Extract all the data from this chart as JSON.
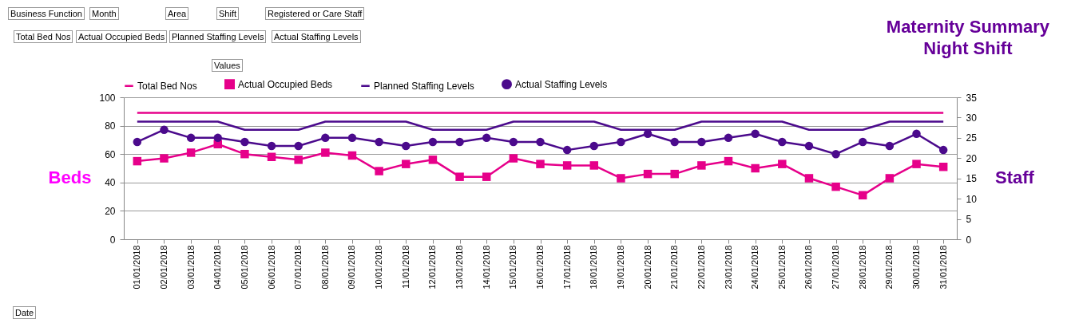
{
  "chart_data": {
    "type": "line",
    "title": "Maternity Summary",
    "subtitle": "Night Shift",
    "ylabel": "Beds",
    "y2label": "Staff",
    "categories": [
      "01/01/2018",
      "02/01/2018",
      "03/01/2018",
      "04/01/2018",
      "05/01/2018",
      "06/01/2018",
      "07/01/2018",
      "08/01/2018",
      "09/01/2018",
      "10/01/2018",
      "11/01/2018",
      "12/01/2018",
      "13/01/2018",
      "14/01/2018",
      "15/01/2018",
      "16/01/2018",
      "17/01/2018",
      "18/01/2018",
      "19/01/2018",
      "20/01/2018",
      "21/01/2018",
      "22/01/2018",
      "23/01/2018",
      "24/01/2018",
      "25/01/2018",
      "26/01/2018",
      "27/01/2018",
      "28/01/2018",
      "29/01/2018",
      "30/01/2018",
      "31/01/2018"
    ],
    "series": [
      {
        "name": "Total Bed Nos",
        "color": "#e6008a",
        "marker": "none",
        "values": [
          89,
          89,
          89,
          89,
          89,
          89,
          89,
          89,
          89,
          89,
          89,
          89,
          89,
          89,
          89,
          89,
          89,
          89,
          89,
          89,
          89,
          89,
          89,
          89,
          89,
          89,
          89,
          89,
          89,
          89,
          89
        ]
      },
      {
        "name": "Actual Occupied Beds",
        "color": "#e6008a",
        "marker": "square",
        "values": [
          55,
          57,
          61,
          67,
          60,
          58,
          56,
          61,
          59,
          48,
          53,
          56,
          44,
          44,
          57,
          53,
          52,
          52,
          43,
          46,
          46,
          52,
          55,
          50,
          53,
          43,
          37,
          31,
          43,
          53,
          51
        ]
      },
      {
        "name": "Planned Staffing Levels",
        "color": "#4b0a8c",
        "marker": "none",
        "axis": "y2",
        "values": [
          29,
          29,
          29,
          29,
          27,
          27,
          27,
          29,
          29,
          29,
          29,
          27,
          27,
          27,
          29,
          29,
          29,
          29,
          27,
          27,
          27,
          29,
          29,
          29,
          29,
          27,
          27,
          27,
          29,
          29,
          29
        ]
      },
      {
        "name": "Actual Staffing Levels",
        "color": "#4b0a8c",
        "marker": "circle",
        "axis": "y2",
        "values": [
          24,
          27,
          25,
          25,
          24,
          23,
          23,
          25,
          25,
          24,
          23,
          24,
          24,
          25,
          24,
          24,
          22,
          23,
          24,
          26,
          24,
          24,
          25,
          26,
          24,
          23,
          21,
          24,
          23,
          26,
          22
        ]
      }
    ],
    "ylim": [
      0,
      100
    ],
    "yticks": [
      0,
      20,
      40,
      60,
      80,
      100
    ],
    "y2lim": [
      0,
      35
    ],
    "y2ticks": [
      0,
      5,
      10,
      15,
      20,
      25,
      30,
      35
    ],
    "grid": "y",
    "legend": "top",
    "annotations": [
      "Business Function",
      "Month",
      "Area",
      "Shift",
      "Registered or Care Staff",
      "Total Bed Nos",
      "Actual Occupied Beds",
      "Planned Staffing Levels",
      "Actual Staffing Levels",
      "Values",
      "Date"
    ]
  }
}
